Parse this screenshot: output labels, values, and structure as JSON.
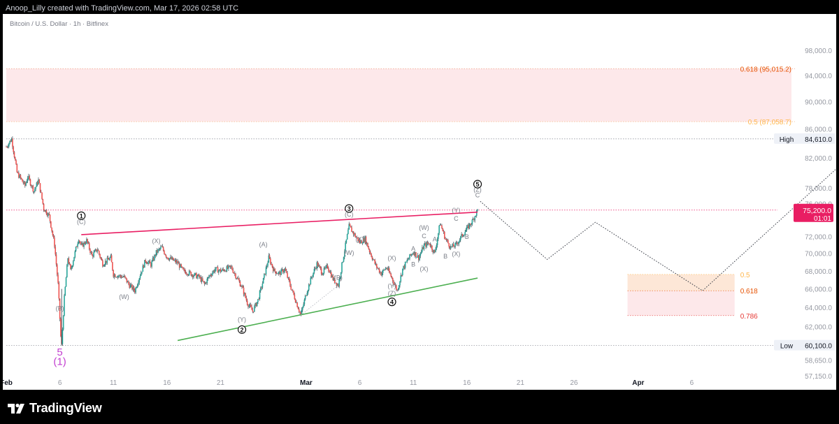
{
  "header": {
    "text": "Anoop_Lilly created with TradingView.com, Mar 17, 2026 02:58 UTC"
  },
  "footer": {
    "brand": "TradingView"
  },
  "chart_data": {
    "type": "candlestick",
    "symbol_title": "Bitcoin / U.S. Dollar · 1h · Bitfinex",
    "y_axis": {
      "scale": "log",
      "range": [
        56500,
        100500
      ],
      "ticks": [
        98000,
        94000,
        90000,
        86000,
        82000,
        78000,
        76000,
        72000,
        70000,
        68000,
        66000,
        64000,
        62000,
        60000,
        58650,
        57150
      ],
      "tick_labels": [
        "98,000.0",
        "94,000.0",
        "90,000.0",
        "86,000.0",
        "82,000.0",
        "78,000.0",
        "76,000.0",
        "72,000.0",
        "70,000.0",
        "68,000.0",
        "66,000.0",
        "64,000.0",
        "62,000.0",
        "60,000.0",
        "58,650.0",
        "57,150.0"
      ]
    },
    "x_axis": {
      "range": [
        "2026-02-01",
        "2026-04-14"
      ],
      "ticks": [
        {
          "date": "2026-02-01",
          "label": "Feb",
          "bold": true
        },
        {
          "date": "2026-02-06",
          "label": "6"
        },
        {
          "date": "2026-02-11",
          "label": "11"
        },
        {
          "date": "2026-02-16",
          "label": "16"
        },
        {
          "date": "2026-02-21",
          "label": "21"
        },
        {
          "date": "2026-03-01",
          "label": "Mar",
          "bold": true
        },
        {
          "date": "2026-03-06",
          "label": "6"
        },
        {
          "date": "2026-03-11",
          "label": "11"
        },
        {
          "date": "2026-03-16",
          "label": "16"
        },
        {
          "date": "2026-03-21",
          "label": "21"
        },
        {
          "date": "2026-03-26",
          "label": "26"
        },
        {
          "date": "2026-04-01",
          "label": "Apr",
          "bold": true
        },
        {
          "date": "2026-04-06",
          "label": "6"
        }
      ]
    },
    "price_path": [
      [
        "2026-02-01",
        83500
      ],
      [
        "2026-02-01T12",
        84610
      ],
      [
        "2026-02-02",
        80000
      ],
      [
        "2026-02-02T18",
        78300
      ],
      [
        "2026-02-03",
        79500
      ],
      [
        "2026-02-03T14",
        77600
      ],
      [
        "2026-02-04",
        79000
      ],
      [
        "2026-02-04T12",
        75400
      ],
      [
        "2026-02-05",
        74500
      ],
      [
        "2026-02-05T12",
        71000
      ],
      [
        "2026-02-05T20",
        66500
      ],
      [
        "2026-02-06T02",
        61000
      ],
      [
        "2026-02-06T04",
        60100
      ],
      [
        "2026-02-06T10",
        65000
      ],
      [
        "2026-02-06T18",
        69500
      ],
      [
        "2026-02-07",
        68000
      ],
      [
        "2026-02-07T18",
        71800
      ],
      [
        "2026-02-08",
        70800
      ],
      [
        "2026-02-08T12",
        71500
      ],
      [
        "2026-02-09",
        69700
      ],
      [
        "2026-02-09T12",
        70500
      ],
      [
        "2026-02-10",
        68800
      ],
      [
        "2026-02-10T18",
        69500
      ],
      [
        "2026-02-11",
        67600
      ],
      [
        "2026-02-12",
        67300
      ],
      [
        "2026-02-12T12",
        66400
      ],
      [
        "2026-02-13",
        65800
      ],
      [
        "2026-02-13T12",
        67600
      ],
      [
        "2026-02-14",
        69200
      ],
      [
        "2026-02-14T12",
        68700
      ],
      [
        "2026-02-15",
        70100
      ],
      [
        "2026-02-15T12",
        70700
      ],
      [
        "2026-02-16",
        69600
      ],
      [
        "2026-02-17",
        68900
      ],
      [
        "2026-02-17T12",
        68000
      ],
      [
        "2026-02-18",
        67800
      ],
      [
        "2026-02-19",
        67300
      ],
      [
        "2026-02-19T12",
        66500
      ],
      [
        "2026-02-20",
        67500
      ],
      [
        "2026-02-20T12",
        68200
      ],
      [
        "2026-02-21",
        68000
      ],
      [
        "2026-02-22",
        68400
      ],
      [
        "2026-02-22T12",
        67300
      ],
      [
        "2026-02-23",
        66200
      ],
      [
        "2026-02-23T12",
        64500
      ],
      [
        "2026-02-24",
        63600
      ],
      [
        "2026-02-24T12",
        64800
      ],
      [
        "2026-02-25",
        67000
      ],
      [
        "2026-02-25T12",
        69500
      ],
      [
        "2026-02-26",
        68000
      ],
      [
        "2026-02-26T12",
        67700
      ],
      [
        "2026-02-27",
        68200
      ],
      [
        "2026-02-27T12",
        66400
      ],
      [
        "2026-02-28",
        64800
      ],
      [
        "2026-02-28T12",
        63200
      ],
      [
        "2026-03-01",
        65500
      ],
      [
        "2026-03-01T12",
        67300
      ],
      [
        "2026-03-02",
        68800
      ],
      [
        "2026-03-02T12",
        67800
      ],
      [
        "2026-03-03",
        68500
      ],
      [
        "2026-03-03T12",
        67100
      ],
      [
        "2026-03-04",
        66400
      ],
      [
        "2026-03-04T12",
        69800
      ],
      [
        "2026-03-05",
        73200
      ],
      [
        "2026-03-05T12",
        72200
      ],
      [
        "2026-03-06",
        71300
      ],
      [
        "2026-03-06T12",
        71700
      ],
      [
        "2026-03-07",
        70000
      ],
      [
        "2026-03-07T12",
        68600
      ],
      [
        "2026-03-08",
        67700
      ],
      [
        "2026-03-08T12",
        68400
      ],
      [
        "2026-03-09",
        67200
      ],
      [
        "2026-03-09T12",
        65800
      ],
      [
        "2026-03-10",
        68200
      ],
      [
        "2026-03-10T12",
        69300
      ],
      [
        "2026-03-11",
        70200
      ],
      [
        "2026-03-11T12",
        69500
      ],
      [
        "2026-03-12",
        70900
      ],
      [
        "2026-03-12T12",
        71200
      ],
      [
        "2026-03-13",
        70000
      ],
      [
        "2026-03-13T12",
        73600
      ],
      [
        "2026-03-14",
        71700
      ],
      [
        "2026-03-14T12",
        70700
      ],
      [
        "2026-03-15",
        71000
      ],
      [
        "2026-03-15T12",
        72000
      ],
      [
        "2026-03-16",
        72900
      ],
      [
        "2026-03-16T12",
        73800
      ],
      [
        "2026-03-17",
        75200
      ]
    ],
    "projection_path": [
      [
        "2026-03-17T06",
        76300
      ],
      [
        "2026-03-23T12",
        69300
      ],
      [
        "2026-03-28",
        73700
      ],
      [
        "2026-04-07",
        65800
      ],
      [
        "2026-04-21",
        82500
      ],
      [
        "2026-04-28",
        72100
      ],
      [
        "2026-05-04",
        76900
      ],
      [
        "2026-05-13",
        67100
      ],
      [
        "2026-05-28",
        81200
      ],
      [
        "2026-06-05",
        74500
      ]
    ],
    "lines": [
      {
        "name": "upper-trendline",
        "color": "#e91e63",
        "from": [
          "2026-02-08",
          72200
        ],
        "to": [
          "2026-03-17",
          74950
        ]
      },
      {
        "name": "lower-trendline",
        "color": "#4caf50",
        "from": [
          "2026-02-17",
          60600
        ],
        "to": [
          "2026-03-17",
          67200
        ]
      }
    ],
    "horizontal_levels": [
      {
        "label": "High",
        "price": 84610,
        "price_label": "84,610.0"
      },
      {
        "label": "Low",
        "price": 60100,
        "price_label": "60,100.0"
      },
      {
        "label": "",
        "price": 75200,
        "price_label": "75,200.0",
        "sub_label": "01:01",
        "color": "#e91e63"
      }
    ],
    "fib_zones": [
      {
        "top": 95015.2,
        "bottom": 87058.7,
        "fill": "#fde8ea",
        "labels": [
          {
            "price": 95015.2,
            "text": "0.618 (95,015.2)",
            "color": "#e65100"
          },
          {
            "price": 87058.7,
            "text": "0.5 (87,058.7)",
            "color": "#ffb74d"
          }
        ]
      },
      {
        "start": "2026-03-31",
        "end": "2026-04-10",
        "levels": [
          {
            "price": 67600,
            "text": "0.5",
            "color": "#ffb74d"
          },
          {
            "price": 65800,
            "text": "0.618",
            "color": "#e65100"
          },
          {
            "price": 63150,
            "text": "0.786",
            "color": "#e53935"
          }
        ]
      }
    ],
    "wave_labels": [
      {
        "text": "5",
        "date": "2026-02-06",
        "price": 59100,
        "color": "#c23fd0",
        "size": 15
      },
      {
        "text": "(1)",
        "date": "2026-02-06",
        "price": 58200,
        "color": "#c23fd0",
        "size": 15
      },
      {
        "text": "(B)",
        "date": "2026-02-06",
        "price": 63700
      },
      {
        "text": "(C)",
        "date": "2026-02-08",
        "price": 73500
      },
      {
        "text": "(X)",
        "date": "2026-02-15",
        "price": 71200
      },
      {
        "text": "(W)",
        "date": "2026-02-12",
        "price": 64900
      },
      {
        "text": "(A)",
        "date": "2026-02-25",
        "price": 70800
      },
      {
        "text": "(Y)",
        "date": "2026-02-23",
        "price": 62500
      },
      {
        "text": "(C)",
        "date": "2026-03-05",
        "price": 74400
      },
      {
        "text": "(X)",
        "date": "2026-03-06",
        "price": 71400
      },
      {
        "text": "(W)",
        "date": "2026-03-05",
        "price": 69800
      },
      {
        "text": "(B)",
        "date": "2026-03-04",
        "price": 67000
      },
      {
        "text": "(X)",
        "date": "2026-03-09",
        "price": 69200
      },
      {
        "text": "(Y)",
        "date": "2026-03-09",
        "price": 66100
      },
      {
        "text": "(Z)",
        "date": "2026-03-09",
        "price": 65300
      },
      {
        "text": "(W)",
        "date": "2026-03-12",
        "price": 72800
      },
      {
        "text": "C",
        "date": "2026-03-12",
        "price": 71800
      },
      {
        "text": "A",
        "date": "2026-03-11",
        "price": 70300
      },
      {
        "text": "B",
        "date": "2026-03-11",
        "price": 68500
      },
      {
        "text": "(X)",
        "date": "2026-03-12",
        "price": 68000
      },
      {
        "text": "A",
        "date": "2026-03-13",
        "price": 71400
      },
      {
        "text": "B",
        "date": "2026-03-14",
        "price": 69400
      },
      {
        "text": "(Y)",
        "date": "2026-03-15",
        "price": 74900
      },
      {
        "text": "C",
        "date": "2026-03-15",
        "price": 73900
      },
      {
        "text": "(X)",
        "date": "2026-03-15",
        "price": 69700
      },
      {
        "text": "B",
        "date": "2026-03-16",
        "price": 71700
      },
      {
        "text": "(Z)",
        "date": "2026-03-17",
        "price": 77500
      },
      {
        "text": "C",
        "date": "2026-03-17",
        "price": 76800
      }
    ],
    "wave_circles": [
      {
        "text": "1",
        "date": "2026-02-08",
        "price": 74500
      },
      {
        "text": "2",
        "date": "2026-02-23",
        "price": 61700
      },
      {
        "text": "3",
        "date": "2026-03-05",
        "price": 75400
      },
      {
        "text": "4",
        "date": "2026-03-09",
        "price": 64600
      },
      {
        "text": "5",
        "date": "2026-03-17",
        "price": 78500
      }
    ],
    "colors": {
      "up": "#26a69a",
      "down": "#ef5350",
      "wick": "#26343f"
    }
  }
}
